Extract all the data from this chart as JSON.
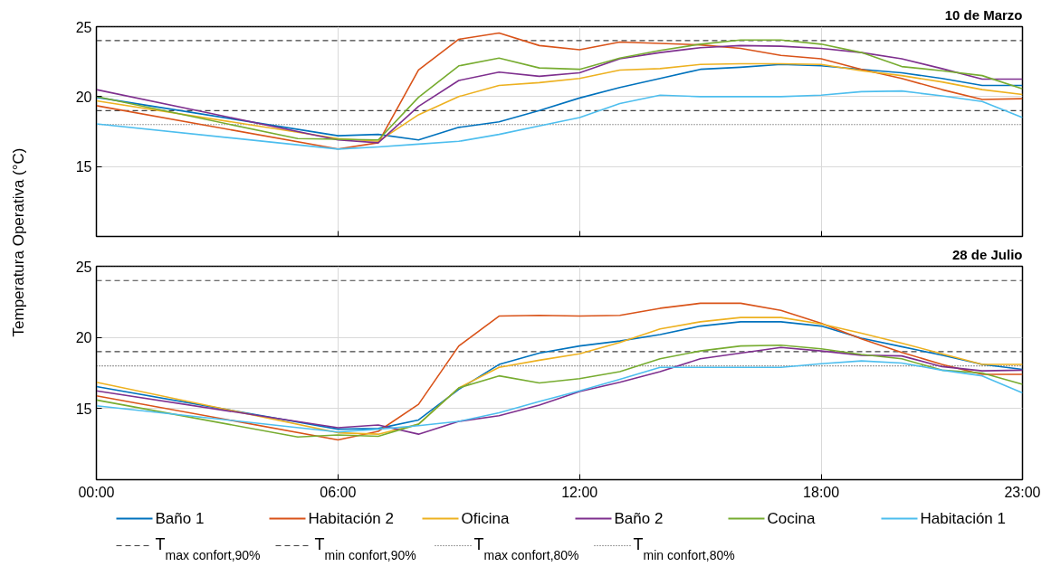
{
  "chart_data": [
    {
      "type": "line",
      "title": "10 de Marzo",
      "ylabel": "Temperatura Operativa (°C)",
      "x": [
        0,
        6,
        7,
        8,
        9,
        10,
        11,
        12,
        13,
        14,
        15,
        16,
        17,
        18,
        19,
        20,
        21,
        22,
        23
      ],
      "xlim": [
        0,
        23
      ],
      "xticks": [
        {
          "value": 0,
          "label": null
        },
        {
          "value": 6,
          "label": null
        },
        {
          "value": 12,
          "label": null
        },
        {
          "value": 18,
          "label": null
        },
        {
          "value": 23,
          "label": null
        }
      ],
      "ylim": [
        10,
        25
      ],
      "yticks": [
        15,
        20,
        25
      ],
      "grid": true,
      "tick_labels": "y",
      "line_style": "solid",
      "series": [
        {
          "color": "#0072bd",
          "values": [
            19.95,
            17.2,
            17.3,
            16.9,
            17.8,
            18.2,
            19.0,
            19.9,
            20.65,
            21.3,
            21.95,
            22.1,
            22.3,
            22.2,
            21.95,
            21.7,
            21.3,
            20.8,
            20.8
          ]
        },
        {
          "color": "#d95319",
          "values": [
            19.35,
            16.25,
            16.7,
            21.9,
            24.1,
            24.55,
            23.65,
            23.35,
            23.9,
            23.8,
            23.7,
            23.45,
            22.95,
            22.7,
            21.95,
            21.3,
            20.5,
            19.8,
            19.85
          ]
        },
        {
          "color": "#edb120",
          "values": [
            19.7,
            17.0,
            16.8,
            18.7,
            20.0,
            20.8,
            21.0,
            21.3,
            21.9,
            22.0,
            22.3,
            22.35,
            22.35,
            22.3,
            21.85,
            21.5,
            21.05,
            20.5,
            20.15
          ]
        },
        {
          "color": "#7e2f8e",
          "values": [
            20.5,
            16.9,
            16.7,
            19.3,
            21.15,
            21.75,
            21.45,
            21.7,
            22.7,
            23.15,
            23.5,
            23.65,
            23.6,
            23.45,
            23.15,
            22.7,
            22.0,
            21.25,
            21.25
          ]
        },
        {
          "color": "#77ac30",
          "x": [
            0,
            5,
            7,
            8,
            9,
            10,
            11,
            12,
            13,
            14,
            15,
            16,
            17,
            18,
            19,
            20,
            21,
            22,
            23
          ],
          "values": [
            20.0,
            17.0,
            16.9,
            19.95,
            22.2,
            22.75,
            22.05,
            21.95,
            22.75,
            23.3,
            23.75,
            24.05,
            24.05,
            23.75,
            23.15,
            22.15,
            21.85,
            21.5,
            20.55
          ]
        },
        {
          "color": "#4dbeee",
          "values": [
            18.05,
            16.25,
            16.4,
            16.6,
            16.8,
            17.3,
            17.9,
            18.5,
            19.5,
            20.1,
            20.0,
            20.0,
            20.0,
            20.1,
            20.35,
            20.4,
            20.05,
            19.65,
            18.5
          ]
        }
      ],
      "ref_lines": [
        {
          "axis": "y",
          "value": 24,
          "color": "#404040",
          "line_style": "dashed"
        },
        {
          "axis": "y",
          "value": 19,
          "color": "#404040",
          "line_style": "dashed"
        },
        {
          "axis": "y",
          "value": 25,
          "color": "#404040",
          "line_style": "dotted"
        },
        {
          "axis": "y",
          "value": 18,
          "color": "#404040",
          "line_style": "dotted"
        }
      ]
    },
    {
      "type": "line",
      "title": "28 de Julio",
      "x": [
        0,
        6,
        7,
        8,
        9,
        10,
        11,
        12,
        13,
        14,
        15,
        16,
        17,
        18,
        19,
        20,
        21,
        22,
        23
      ],
      "xlim": [
        0,
        23
      ],
      "xticks": [
        {
          "value": 0,
          "label": "00:00"
        },
        {
          "value": 6,
          "label": "06:00"
        },
        {
          "value": 12,
          "label": "12:00"
        },
        {
          "value": 18,
          "label": "18:00"
        },
        {
          "value": 23,
          "label": "23:00"
        }
      ],
      "ylim": [
        10,
        25
      ],
      "yticks": [
        15,
        20,
        25
      ],
      "grid": true,
      "legend": "bottom",
      "line_style": "solid",
      "series": [
        {
          "name": "Baño 1",
          "color": "#0072bd",
          "values": [
            16.55,
            13.55,
            13.6,
            14.2,
            16.35,
            18.1,
            18.9,
            19.4,
            19.75,
            20.2,
            20.8,
            21.1,
            21.1,
            20.8,
            19.95,
            19.35,
            18.75,
            18.1,
            17.75
          ]
        },
        {
          "name": "Habitación 2",
          "color": "#d95319",
          "values": [
            15.9,
            12.8,
            13.4,
            15.3,
            19.4,
            21.5,
            21.55,
            21.5,
            21.55,
            22.05,
            22.4,
            22.4,
            21.9,
            21.0,
            19.9,
            18.95,
            18.1,
            17.4,
            17.4
          ]
        },
        {
          "name": "Oficina",
          "color": "#edb120",
          "values": [
            16.85,
            13.3,
            13.2,
            13.9,
            16.45,
            17.9,
            18.4,
            18.85,
            19.65,
            20.6,
            21.1,
            21.4,
            21.4,
            20.95,
            20.3,
            19.6,
            18.85,
            18.1,
            18.1
          ]
        },
        {
          "name": "Baño 2",
          "color": "#7e2f8e",
          "values": [
            16.25,
            13.65,
            13.85,
            13.2,
            14.1,
            14.5,
            15.25,
            16.2,
            16.85,
            17.6,
            18.5,
            18.9,
            19.3,
            19.05,
            18.75,
            18.7,
            17.95,
            17.65,
            17.7
          ]
        },
        {
          "name": "Cocina",
          "color": "#77ac30",
          "x": [
            0,
            5,
            6,
            7,
            8,
            9,
            10,
            11,
            12,
            13,
            14,
            15,
            16,
            17,
            18,
            19,
            20,
            21,
            22,
            23
          ],
          "values": [
            15.6,
            13.0,
            13.15,
            13.05,
            13.9,
            16.45,
            17.3,
            16.8,
            17.1,
            17.6,
            18.5,
            19.05,
            19.4,
            19.45,
            19.2,
            18.8,
            18.5,
            17.7,
            17.5,
            16.7
          ]
        },
        {
          "name": "Habitación 1",
          "color": "#4dbeee",
          "values": [
            15.2,
            13.35,
            13.55,
            13.8,
            14.1,
            14.7,
            15.5,
            16.25,
            17.05,
            17.9,
            17.9,
            17.9,
            17.9,
            18.15,
            18.35,
            18.2,
            17.7,
            17.3,
            16.1
          ]
        }
      ],
      "ref_lines": [
        {
          "axis": "y",
          "value": 24,
          "label": "T$_{max confort,90%}$",
          "color": "#404040",
          "line_style": "dashed"
        },
        {
          "axis": "y",
          "value": 19,
          "label": "T$_{min confort,90%}$",
          "color": "#404040",
          "line_style": "dashed"
        },
        {
          "axis": "y",
          "value": 25,
          "label": "T$_{max confort,80%}$",
          "color": "#404040",
          "line_style": "dotted"
        },
        {
          "axis": "y",
          "value": 18,
          "label": "T$_{min confort,80%}$",
          "color": "#404040",
          "line_style": "dotted"
        }
      ]
    }
  ]
}
